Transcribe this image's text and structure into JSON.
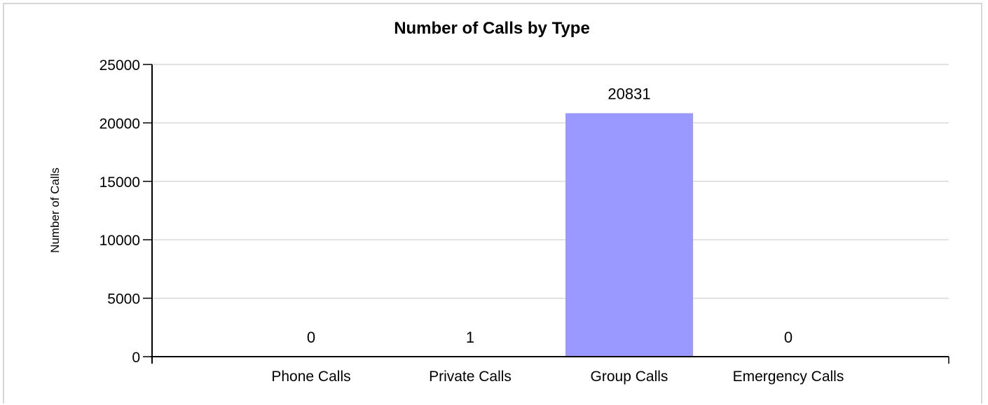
{
  "chart_data": {
    "type": "bar",
    "title": "Number of Calls by Type",
    "xlabel": "",
    "ylabel": "Number of Calls",
    "categories": [
      "Phone Calls",
      "Private Calls",
      "Group Calls",
      "Emergency Calls"
    ],
    "values": [
      0,
      1,
      20831,
      0
    ],
    "data_labels": [
      "0",
      "1",
      "20831",
      "0"
    ],
    "ylim": [
      0,
      25000
    ],
    "yticks": [
      0,
      5000,
      10000,
      15000,
      20000,
      25000
    ],
    "ytick_labels": [
      "0",
      "5000",
      "10000",
      "15000",
      "20000",
      "25000"
    ],
    "grid": true,
    "legend": "none",
    "bar_color": "#9999ff"
  }
}
